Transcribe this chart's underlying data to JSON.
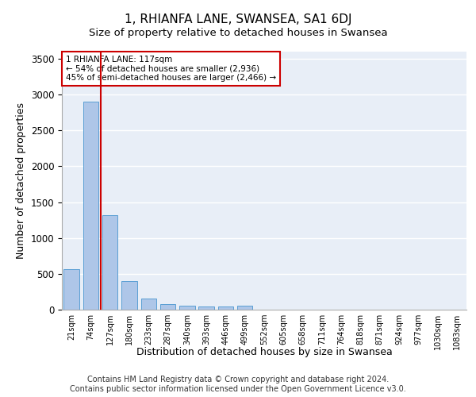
{
  "title": "1, RHIANFA LANE, SWANSEA, SA1 6DJ",
  "subtitle": "Size of property relative to detached houses in Swansea",
  "xlabel": "Distribution of detached houses by size in Swansea",
  "ylabel": "Number of detached properties",
  "categories": [
    "21sqm",
    "74sqm",
    "127sqm",
    "180sqm",
    "233sqm",
    "287sqm",
    "340sqm",
    "393sqm",
    "446sqm",
    "499sqm",
    "552sqm",
    "605sqm",
    "658sqm",
    "711sqm",
    "764sqm",
    "818sqm",
    "871sqm",
    "924sqm",
    "977sqm",
    "1030sqm",
    "1083sqm"
  ],
  "values": [
    560,
    2900,
    1320,
    400,
    155,
    80,
    55,
    45,
    40,
    55,
    0,
    0,
    0,
    0,
    0,
    0,
    0,
    0,
    0,
    0,
    0
  ],
  "bar_color": "#aec6e8",
  "bar_edge_color": "#5a9fd4",
  "vline_color": "#cc0000",
  "annotation_text": "1 RHIANFA LANE: 117sqm\n← 54% of detached houses are smaller (2,936)\n45% of semi-detached houses are larger (2,466) →",
  "annotation_box_color": "#ffffff",
  "annotation_box_edge": "#cc0000",
  "ylim": [
    0,
    3600
  ],
  "yticks": [
    0,
    500,
    1000,
    1500,
    2000,
    2500,
    3000,
    3500
  ],
  "background_color": "#e8eef7",
  "footer_text": "Contains HM Land Registry data © Crown copyright and database right 2024.\nContains public sector information licensed under the Open Government Licence v3.0.",
  "title_fontsize": 11,
  "subtitle_fontsize": 9.5,
  "xlabel_fontsize": 9,
  "ylabel_fontsize": 9,
  "footer_fontsize": 7
}
